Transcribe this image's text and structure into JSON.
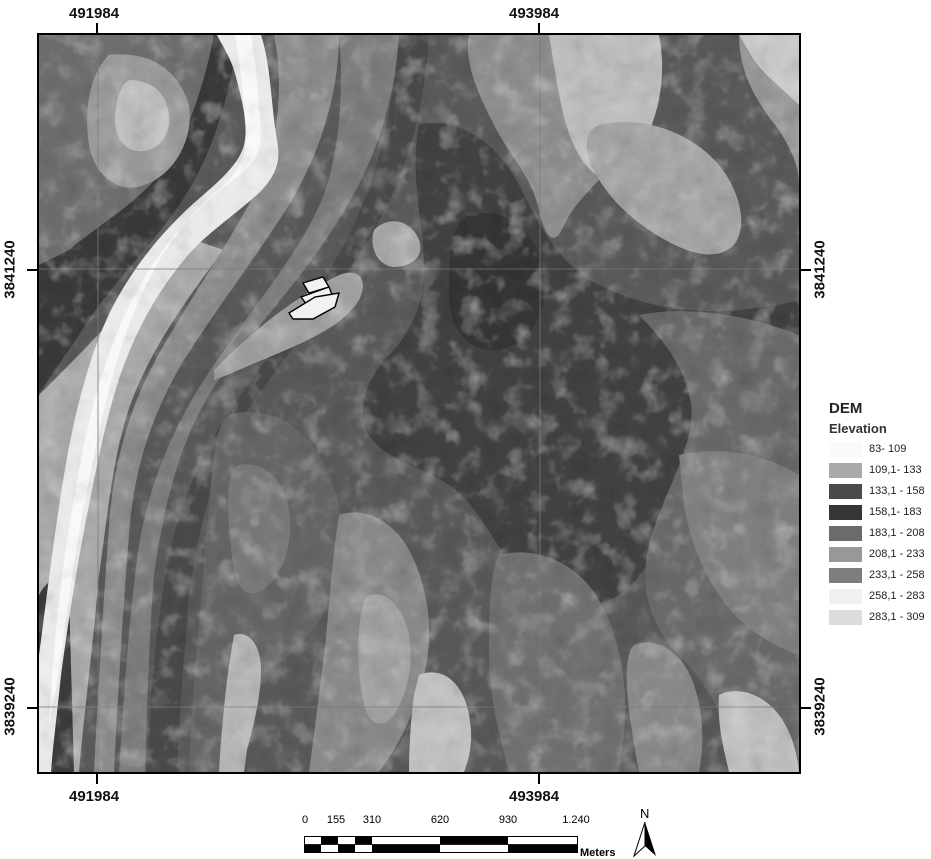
{
  "coordinates": {
    "top": [
      "491984",
      "493984"
    ],
    "bottom": [
      "491984",
      "493984"
    ],
    "left": [
      "3841240",
      "3839240"
    ],
    "right": [
      "3841240",
      "3839240"
    ]
  },
  "legend": {
    "title": "DEM",
    "subtitle": "Elevation",
    "classes": [
      {
        "label": "83- 109",
        "color": "#fafafa"
      },
      {
        "label": "109,1- 133",
        "color": "#a9a9a9"
      },
      {
        "label": "133,1 - 158",
        "color": "#4a4a4a"
      },
      {
        "label": "158,1- 183",
        "color": "#363636"
      },
      {
        "label": "183,1 - 208",
        "color": "#6b6b6b"
      },
      {
        "label": "208,1 - 233",
        "color": "#989898"
      },
      {
        "label": "233,1 - 258",
        "color": "#7d7d7d"
      },
      {
        "label": "258,1 - 283",
        "color": "#f1f1f1"
      },
      {
        "label": "283,1 - 309",
        "color": "#dcdcdc"
      }
    ]
  },
  "scale_bar": {
    "labels": [
      "0",
      "155",
      "310",
      "620",
      "930",
      "1.240"
    ],
    "units": "Meters"
  },
  "north_arrow": {
    "label": "N"
  }
}
